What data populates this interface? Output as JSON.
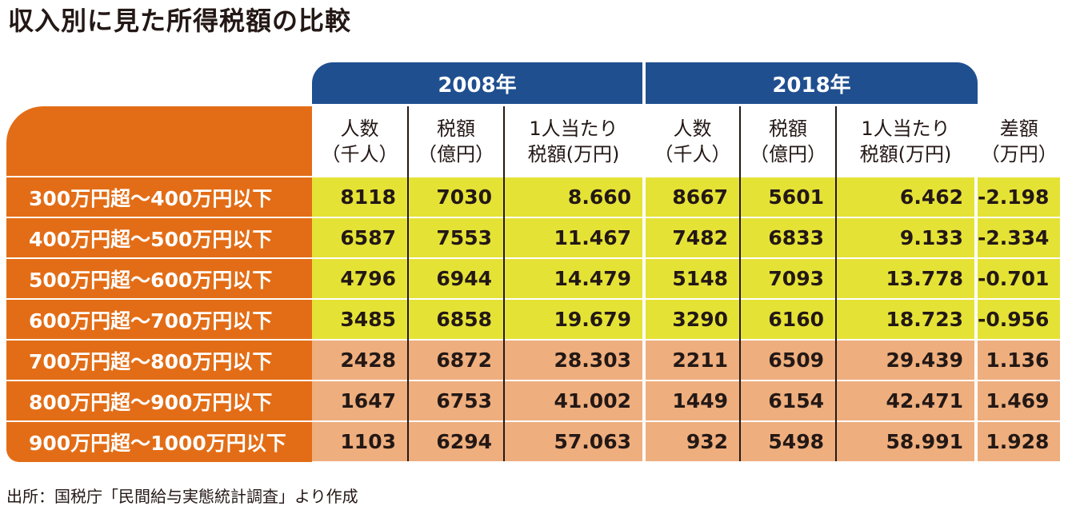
{
  "title": "収入別に見た所得税額の比較",
  "years": [
    "2008年",
    "2018年"
  ],
  "headers": {
    "people": [
      "人数",
      "（千人）"
    ],
    "tax": [
      "税額",
      "（億円）"
    ],
    "per_capita": [
      "1人当たり",
      "税額(万円)"
    ],
    "diff": [
      "差額",
      "（万円）"
    ]
  },
  "source": "出所：国税庁「民間給与実態統計調査」より作成",
  "colors": {
    "year_header": "#1f4f8f",
    "label_band": "#e36d16",
    "decrease_rows": "#e5e236",
    "increase_rows": "#eeae7e"
  },
  "chart_data": {
    "type": "table",
    "title": "収入別に見た所得税額の比較",
    "column_groups": [
      "2008年",
      "2018年",
      ""
    ],
    "columns": [
      "人数（千人）",
      "税額（億円）",
      "1人当たり税額(万円)",
      "人数（千人）",
      "税額（億円）",
      "1人当たり税額(万円)",
      "差額（万円）"
    ],
    "rows": [
      {
        "label": "300万円超～400万円以下",
        "values": [
          "8118",
          "7030",
          "8.660",
          "8667",
          "5601",
          "6.462",
          "-2.198"
        ],
        "highlight": "yellow"
      },
      {
        "label": "400万円超～500万円以下",
        "values": [
          "6587",
          "7553",
          "11.467",
          "7482",
          "6833",
          "9.133",
          "-2.334"
        ],
        "highlight": "yellow"
      },
      {
        "label": "500万円超～600万円以下",
        "values": [
          "4796",
          "6944",
          "14.479",
          "5148",
          "7093",
          "13.778",
          "-0.701"
        ],
        "highlight": "yellow"
      },
      {
        "label": "600万円超～700万円以下",
        "values": [
          "3485",
          "6858",
          "19.679",
          "3290",
          "6160",
          "18.723",
          "-0.956"
        ],
        "highlight": "yellow"
      },
      {
        "label": "700万円超～800万円以下",
        "values": [
          "2428",
          "6872",
          "28.303",
          "2211",
          "6509",
          "29.439",
          "1.136"
        ],
        "highlight": "peach"
      },
      {
        "label": "800万円超～900万円以下",
        "values": [
          "1647",
          "6753",
          "41.002",
          "1449",
          "6154",
          "42.471",
          "1.469"
        ],
        "highlight": "peach"
      },
      {
        "label": "900万円超～1000万円以下",
        "values": [
          "1103",
          "6294",
          "57.063",
          "932",
          "5498",
          "58.991",
          "1.928"
        ],
        "highlight": "peach"
      }
    ]
  }
}
